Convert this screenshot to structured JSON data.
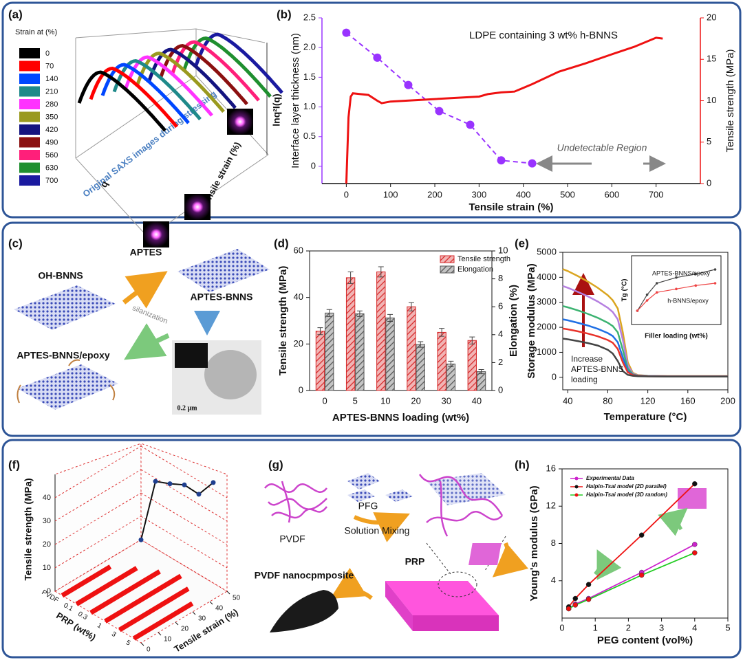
{
  "panel_labels": [
    "(a)",
    "(b)",
    "(c)",
    "(d)",
    "(e)",
    "(f)",
    "(g)",
    "(h)"
  ],
  "a": {
    "legend_title": "Strain at (%)",
    "legend": [
      {
        "label": "0",
        "color": "#000000"
      },
      {
        "label": "70",
        "color": "#ff0000"
      },
      {
        "label": "140",
        "color": "#0047ff"
      },
      {
        "label": "210",
        "color": "#1f8a8a"
      },
      {
        "label": "280",
        "color": "#ff33ff"
      },
      {
        "label": "350",
        "color": "#9a9a1f"
      },
      {
        "label": "420",
        "color": "#141480"
      },
      {
        "label": "490",
        "color": "#8b1010"
      },
      {
        "label": "560",
        "color": "#ff1f7a"
      },
      {
        "label": "630",
        "color": "#1f8f2f"
      },
      {
        "label": "700",
        "color": "#1a1aa0"
      }
    ],
    "xlabel": "q",
    "ylabel": "lnq²I(q)",
    "zlabel": "Tensile strain (%)",
    "annotation": "Original SAXS images during stressing"
  },
  "c": {
    "nodes": [
      "OH-BNNS",
      "APTES",
      "silanization",
      "APTES-BNNS",
      "APTES-BNNS/epoxy",
      "0.2 μm"
    ]
  },
  "g": {
    "nodes": [
      "PVDF",
      "PFG",
      "Solution Mixing",
      "PRP",
      "PVDF nanocpmposite"
    ]
  },
  "chart_data": [
    {
      "type": "dual-axis-line",
      "xlabel": "Tensile strain (%)",
      "ylabel": "Interface layer thickness (nm)",
      "y2label": "Tensile strength (MPa)",
      "xlim": [
        -55,
        800
      ],
      "xticks": [
        0,
        100,
        200,
        300,
        400,
        500,
        600,
        700
      ],
      "ylim": [
        -0.29,
        2.5
      ],
      "yticks": [
        0,
        0.5,
        {
          "value": 1,
          "label": "1.0"
        },
        1.5,
        {
          "value": 2,
          "label": "2.0"
        },
        2.5
      ],
      "y2lim": [
        0,
        20
      ],
      "y2ticks": [
        0,
        5,
        10,
        15,
        20
      ],
      "annotations": [
        "LDPE containing 3 wt% h-BNNS",
        "Undetectable Region"
      ],
      "series": [
        {
          "color": "#9933ff",
          "markers": true,
          "dash": true,
          "x": [
            0,
            70,
            140,
            210,
            280,
            350,
            420
          ],
          "values": [
            2.25,
            1.83,
            1.37,
            0.93,
            0.7,
            0.1,
            0.05
          ]
        },
        {
          "color": "#ee1111",
          "axis": "y2",
          "x": [
            0,
            5,
            10,
            15,
            50,
            70,
            80,
            100,
            200,
            300,
            320,
            350,
            380,
            420,
            480,
            540,
            600,
            650,
            700,
            715
          ],
          "values": [
            0,
            8,
            10.5,
            10.9,
            10.7,
            10,
            9.7,
            9.9,
            10.2,
            10.5,
            10.8,
            11,
            11.1,
            12,
            13.5,
            14.5,
            15.6,
            16.5,
            17.6,
            17.5
          ]
        }
      ]
    },
    {
      "type": "bar",
      "xlabel": "APTES-BNNS loading (wt%)",
      "ylabel": "Tensile strength (MPa)",
      "y2label": "Elongation (%)",
      "categories": [
        "0",
        "5",
        "10",
        "20",
        "30",
        "40"
      ],
      "ylim": [
        0,
        60
      ],
      "yticks": [
        0,
        20,
        40,
        60
      ],
      "y2lim": [
        0,
        10
      ],
      "y2ticks": [
        0,
        2,
        4,
        6,
        8,
        10
      ],
      "series": [
        {
          "name": "Tensile strength",
          "color": "#d62728",
          "values": [
            25.5,
            48.5,
            51,
            36,
            25,
            21.5
          ],
          "errors": [
            1.5,
            2.5,
            2.2,
            1.8,
            1.7,
            1.5
          ]
        },
        {
          "name": "Elongation",
          "color": "#555555",
          "axis": "y2",
          "values": [
            5.55,
            5.5,
            5.2,
            3.3,
            1.9,
            1.35
          ],
          "errors": [
            0.25,
            0.2,
            0.25,
            0.2,
            0.2,
            0.15
          ]
        }
      ]
    },
    {
      "type": "line",
      "xlabel": "Temperature (°C)",
      "ylabel": "Storage modulus (MPa)",
      "annotation": [
        "Increase",
        "APTES-BNNS",
        "loading"
      ],
      "xlim": [
        35,
        200
      ],
      "xticks": [
        40,
        80,
        120,
        160,
        200
      ],
      "ylim": [
        -500,
        5000
      ],
      "yticks": [
        0,
        1000,
        2000,
        3000,
        4000,
        5000
      ],
      "x": [
        35,
        40,
        50,
        60,
        70,
        80,
        85,
        90,
        95,
        100,
        105,
        110,
        120,
        140,
        160,
        180,
        200
      ],
      "series": [
        {
          "color": "#daa520",
          "values": [
            4330,
            4250,
            4050,
            3830,
            3580,
            3280,
            3080,
            2750,
            1800,
            600,
            180,
            90,
            60,
            50,
            50,
            50,
            50
          ]
        },
        {
          "color": "#b57fe0",
          "values": [
            3650,
            3580,
            3420,
            3240,
            3030,
            2780,
            2610,
            2320,
            1500,
            480,
            150,
            80,
            55,
            45,
            45,
            45,
            45
          ]
        },
        {
          "color": "#3cb371",
          "values": [
            2850,
            2800,
            2680,
            2540,
            2380,
            2180,
            2050,
            1800,
            1100,
            350,
            120,
            70,
            50,
            40,
            40,
            40,
            40
          ]
        },
        {
          "color": "#1f6fe4",
          "values": [
            2320,
            2280,
            2180,
            2070,
            1940,
            1770,
            1650,
            1400,
            800,
            250,
            100,
            60,
            45,
            40,
            40,
            40,
            40
          ]
        },
        {
          "color": "#e8322a",
          "values": [
            1950,
            1920,
            1840,
            1750,
            1640,
            1490,
            1380,
            1130,
            600,
            200,
            90,
            55,
            40,
            35,
            35,
            35,
            35
          ]
        },
        {
          "color": "#444444",
          "values": [
            1550,
            1520,
            1450,
            1370,
            1270,
            1100,
            950,
            650,
            250,
            100,
            60,
            45,
            35,
            30,
            30,
            30,
            30
          ]
        }
      ]
    },
    {
      "type": "line",
      "xlabel": "Filler loading (wt%)",
      "ylabel": "Tg (°C)",
      "xlim": [
        -3,
        43
      ],
      "ylim": [
        100,
        160
      ],
      "x": [
        0,
        5,
        10,
        20,
        30,
        40
      ],
      "series": [
        {
          "name": "APTES-BNNS/epoxy",
          "color": "#444444",
          "values": [
            112,
            126,
            136,
            141,
            144,
            148
          ]
        },
        {
          "name": "h-BNNS/epoxy",
          "color": "#ee4444",
          "values": [
            112,
            121,
            128,
            131,
            134,
            136
          ]
        }
      ]
    },
    {
      "type": "line3d",
      "ylabel": "Tensile strength (MPa)",
      "xlabel": "PRP (wt%)",
      "zlabel": "Tensile strain (%)",
      "categories": [
        "PVDF",
        "0.1",
        "0.3",
        "1",
        "3",
        "5"
      ],
      "values": [
        22,
        47,
        46,
        45.5,
        41.5,
        46.5
      ],
      "color": "#1f3f8f",
      "ylim": [
        0,
        50
      ],
      "yticks": [
        0,
        10,
        20,
        30,
        40
      ],
      "zlim": [
        0,
        50
      ],
      "zticks": [
        0,
        10,
        20,
        30,
        40,
        50
      ],
      "bars": [
        28,
        35,
        40,
        44,
        40,
        34
      ],
      "bar_color": "#ee1111"
    },
    {
      "type": "scatter-line",
      "xlabel": "PEG content (vol%)",
      "ylabel": "Young's modulus (GPa)",
      "xlim": [
        0,
        5
      ],
      "xticks": [
        0,
        1,
        2,
        3,
        4,
        5
      ],
      "ylim": [
        0,
        16
      ],
      "yticks": [
        4,
        8,
        12,
        16
      ],
      "series": [
        {
          "name": "Experimental Data",
          "color": "#cc22cc",
          "marker_color": "#cc22cc",
          "x": [
            0.2,
            0.4,
            0.8,
            2.4,
            4
          ],
          "values": [
            1.0,
            1.5,
            2.1,
            4.9,
            7.9
          ]
        },
        {
          "name": "Halpin-Tsai model (2D parallel)",
          "color": "#ee1111",
          "marker_color": "#111111",
          "x": [
            0.2,
            0.4,
            0.8,
            2.4,
            4
          ],
          "values": [
            1.2,
            2.1,
            3.6,
            8.9,
            14.4
          ]
        },
        {
          "name": "Halpin-Tsai model (3D random)",
          "color": "#22cc22",
          "marker_color": "#ee1111",
          "x": [
            0.2,
            0.4,
            0.8,
            2.4,
            4
          ],
          "values": [
            1.0,
            1.4,
            2.0,
            4.6,
            7.0
          ]
        }
      ]
    }
  ]
}
